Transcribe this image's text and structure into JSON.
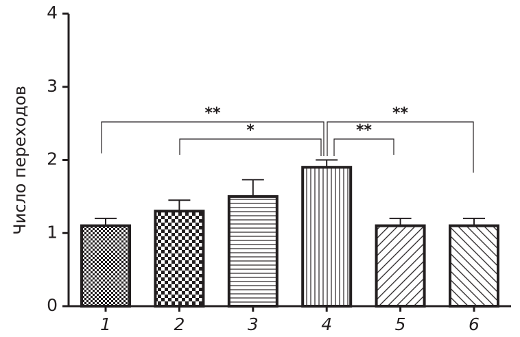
{
  "chart_data": {
    "type": "bar",
    "y_label": "Число переходов",
    "categories": [
      "1",
      "2",
      "3",
      "4",
      "5",
      "6"
    ],
    "values": [
      1.1,
      1.3,
      1.5,
      1.9,
      1.1,
      1.1
    ],
    "errors": [
      0.1,
      0.15,
      0.23,
      0.1,
      0.1,
      0.1
    ],
    "color": "#231f20",
    "ylim": [
      0,
      4
    ],
    "yticks": [
      0,
      1,
      2,
      3,
      4
    ],
    "grid": false,
    "annotations": [
      "**",
      "*",
      "**",
      "**"
    ]
  }
}
